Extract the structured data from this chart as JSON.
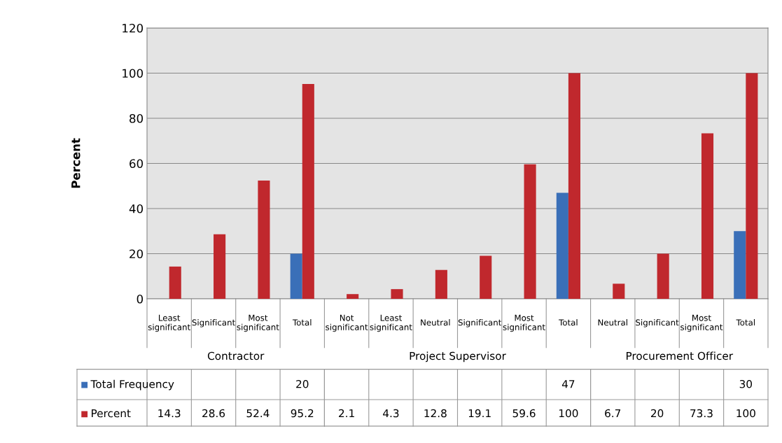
{
  "chart_data": {
    "type": "bar",
    "ylabel": "Percent",
    "categories": [
      "Least significant",
      "Significant",
      "Most significant",
      "Total",
      "Not significant",
      "Least significant",
      "Neutral",
      "Significant",
      "Most significant",
      "Total",
      "Neutral",
      "Significant",
      "Most significant",
      "Total"
    ],
    "series": [
      {
        "name": "Total Frequency",
        "color": "#3a6fb8",
        "values": [
          null,
          null,
          null,
          20,
          null,
          null,
          null,
          null,
          null,
          47,
          null,
          null,
          null,
          30
        ]
      },
      {
        "name": "Percent",
        "color": "#c0282d",
        "values": [
          14.3,
          28.6,
          52.4,
          95.2,
          2.1,
          4.3,
          12.8,
          19.1,
          59.6,
          100,
          6.7,
          20,
          73.3,
          100
        ]
      }
    ],
    "annotations": [
      "Contractor",
      "Project Supervisor",
      "Procurement Officer"
    ],
    "ylim": [
      0,
      120
    ],
    "yticks": [
      0,
      20,
      40,
      60,
      80,
      100,
      120
    ],
    "grid": "y",
    "legend": "bottom",
    "data_labels": true
  }
}
